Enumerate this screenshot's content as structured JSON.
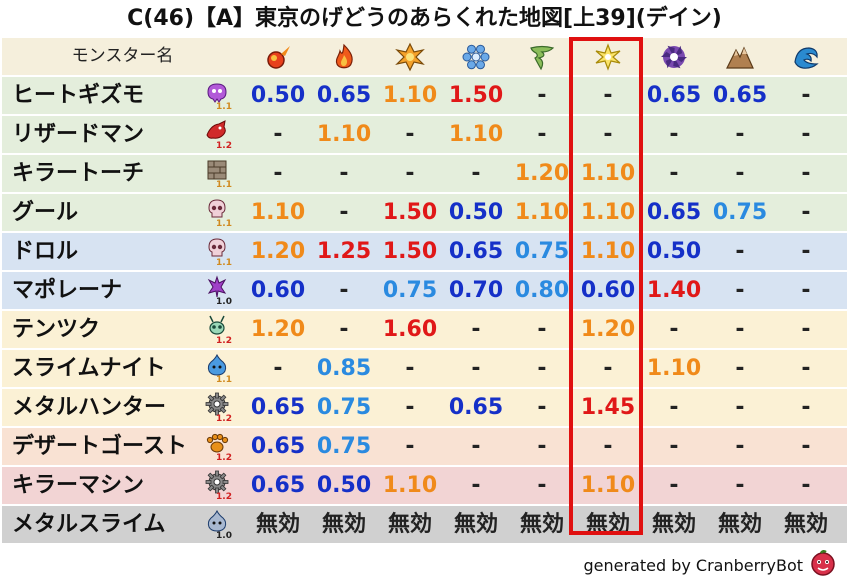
{
  "title": "C(46)【A】東京のげどうのあらくれた地図[上39](デイン)",
  "header_label": "モンスター名",
  "elements": [
    {
      "icon": "fire-ball-icon",
      "color": "#e8401c"
    },
    {
      "icon": "flame-icon",
      "color": "#f05a1a"
    },
    {
      "icon": "explosion-icon",
      "color": "#f4a12a"
    },
    {
      "icon": "ice-icon",
      "color": "#6aa9e8"
    },
    {
      "icon": "wind-icon",
      "color": "#8bbd5a"
    },
    {
      "icon": "lightning-icon",
      "color": "#e8c81a"
    },
    {
      "icon": "darkness-icon",
      "color": "#7a4ab0"
    },
    {
      "icon": "earth-icon",
      "color": "#b08050"
    },
    {
      "icon": "water-icon",
      "color": "#2a8ad0"
    }
  ],
  "value_colors": {
    "resist": "#1530c8",
    "weak_low": "#f08a1a",
    "weak_high": "#e01818",
    "resist_light": "#2a8ae0",
    "neutral": "#222222"
  },
  "rows": [
    {
      "name": "ヒートギズモ",
      "icon": "heat-gizmo-icon",
      "mult": "1.1",
      "mult_color": "#d08a20",
      "bg": "#e4eedc",
      "values": [
        "0.50",
        "0.65",
        "1.10",
        "1.50",
        "-",
        "-",
        "0.65",
        "0.65",
        "-"
      ],
      "classes": [
        "resist",
        "resist",
        "weak_low",
        "weak_high",
        "neutral",
        "neutral",
        "resist",
        "resist",
        "neutral"
      ]
    },
    {
      "name": "リザードマン",
      "icon": "lizard-man-icon",
      "mult": "1.2",
      "mult_color": "#d02020",
      "bg": "#e4eedc",
      "values": [
        "-",
        "1.10",
        "-",
        "1.10",
        "-",
        "-",
        "-",
        "-",
        "-"
      ],
      "classes": [
        "neutral",
        "weak_low",
        "neutral",
        "weak_low",
        "neutral",
        "neutral",
        "neutral",
        "neutral",
        "neutral"
      ]
    },
    {
      "name": "キラートーチ",
      "icon": "killer-torch-icon",
      "mult": "1.1",
      "mult_color": "#d08a20",
      "bg": "#e4eedc",
      "values": [
        "-",
        "-",
        "-",
        "-",
        "1.20",
        "1.10",
        "-",
        "-",
        "-"
      ],
      "classes": [
        "neutral",
        "neutral",
        "neutral",
        "neutral",
        "weak_low",
        "weak_low",
        "neutral",
        "neutral",
        "neutral"
      ]
    },
    {
      "name": "グール",
      "icon": "ghoul-skull-icon",
      "mult": "1.1",
      "mult_color": "#d08a20",
      "bg": "#e4eedc",
      "values": [
        "1.10",
        "-",
        "1.50",
        "0.50",
        "1.10",
        "1.10",
        "0.65",
        "0.75",
        "-"
      ],
      "classes": [
        "weak_low",
        "neutral",
        "weak_high",
        "resist",
        "weak_low",
        "weak_low",
        "resist",
        "resist_light",
        "neutral"
      ]
    },
    {
      "name": "ドロル",
      "icon": "drol-skull-icon",
      "mult": "1.1",
      "mult_color": "#d08a20",
      "bg": "#d7e3f2",
      "values": [
        "1.20",
        "1.25",
        "1.50",
        "0.65",
        "0.75",
        "1.10",
        "0.50",
        "-",
        "-"
      ],
      "classes": [
        "weak_low",
        "weak_high",
        "weak_high",
        "resist",
        "resist_light",
        "weak_low",
        "resist",
        "neutral",
        "neutral"
      ]
    },
    {
      "name": "マポレーナ",
      "icon": "maporena-icon",
      "mult": "1.0",
      "mult_color": "#222222",
      "bg": "#d7e3f2",
      "values": [
        "0.60",
        "-",
        "0.75",
        "0.70",
        "0.80",
        "0.60",
        "1.40",
        "-",
        "-"
      ],
      "classes": [
        "resist",
        "neutral",
        "resist_light",
        "resist",
        "resist_light",
        "resist",
        "weak_high",
        "neutral",
        "neutral"
      ]
    },
    {
      "name": "テンツク",
      "icon": "tentsuku-icon",
      "mult": "1.2",
      "mult_color": "#d02020",
      "bg": "#fbf1d5",
      "values": [
        "1.20",
        "-",
        "1.60",
        "-",
        "-",
        "1.20",
        "-",
        "-",
        "-"
      ],
      "classes": [
        "weak_low",
        "neutral",
        "weak_high",
        "neutral",
        "neutral",
        "weak_low",
        "neutral",
        "neutral",
        "neutral"
      ]
    },
    {
      "name": "スライムナイト",
      "icon": "slime-knight-icon",
      "mult": "1.1",
      "mult_color": "#d08a20",
      "bg": "#fbf1d5",
      "values": [
        "-",
        "0.85",
        "-",
        "-",
        "-",
        "-",
        "1.10",
        "-",
        "-"
      ],
      "classes": [
        "neutral",
        "resist_light",
        "neutral",
        "neutral",
        "neutral",
        "neutral",
        "weak_low",
        "neutral",
        "neutral"
      ]
    },
    {
      "name": "メタルハンター",
      "icon": "metal-hunter-gear-icon",
      "mult": "1.2",
      "mult_color": "#d02020",
      "bg": "#fbf1d5",
      "values": [
        "0.65",
        "0.75",
        "-",
        "0.65",
        "-",
        "1.45",
        "-",
        "-",
        "-"
      ],
      "classes": [
        "resist",
        "resist_light",
        "neutral",
        "resist",
        "neutral",
        "weak_high",
        "neutral",
        "neutral",
        "neutral"
      ]
    },
    {
      "name": "デザートゴースト",
      "icon": "desert-ghost-paw-icon",
      "mult": "1.2",
      "mult_color": "#d02020",
      "bg": "#f9e2d3",
      "values": [
        "0.65",
        "0.75",
        "-",
        "-",
        "-",
        "-",
        "-",
        "-",
        "-"
      ],
      "classes": [
        "resist",
        "resist_light",
        "neutral",
        "neutral",
        "neutral",
        "neutral",
        "neutral",
        "neutral",
        "neutral"
      ]
    },
    {
      "name": "キラーマシン",
      "icon": "killer-machine-gear-icon",
      "mult": "1.2",
      "mult_color": "#d02020",
      "bg": "#f2d4d4",
      "values": [
        "0.65",
        "0.50",
        "1.10",
        "-",
        "-",
        "1.10",
        "-",
        "-",
        "-"
      ],
      "classes": [
        "resist",
        "resist",
        "weak_low",
        "neutral",
        "neutral",
        "weak_low",
        "neutral",
        "neutral",
        "neutral"
      ]
    },
    {
      "name": "メタルスライム",
      "icon": "metal-slime-icon",
      "mult": "1.0",
      "mult_color": "#222222",
      "bg": "#d0d0d0",
      "values": [
        "無効",
        "無効",
        "無効",
        "無効",
        "無効",
        "無効",
        "無効",
        "無効",
        "無効"
      ],
      "classes": [
        "neutral",
        "neutral",
        "neutral",
        "neutral",
        "neutral",
        "neutral",
        "neutral",
        "neutral",
        "neutral"
      ]
    }
  ],
  "highlight_column": 5,
  "footer": "generated by CranberryBot",
  "footer_icon": "cranberry-icon"
}
